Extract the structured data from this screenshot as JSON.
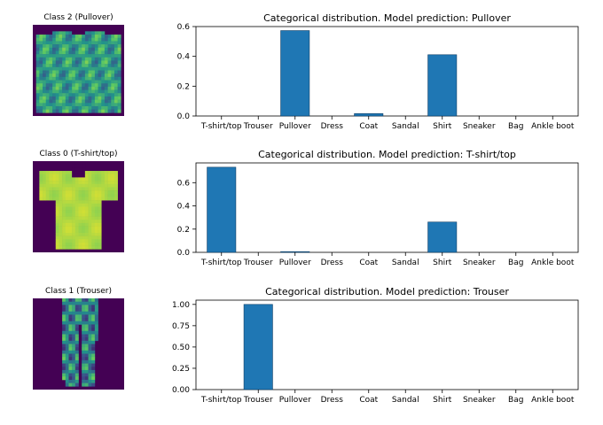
{
  "chart_data": [
    {
      "type": "bar",
      "title": "Categorical distribution. Model prediction: Pullover",
      "image_title": "Class 2 (Pullover)",
      "image_kind": "pullover",
      "categories": [
        "T-shirt/top",
        "Trouser",
        "Pullover",
        "Dress",
        "Coat",
        "Sandal",
        "Shirt",
        "Sneaker",
        "Bag",
        "Ankle boot"
      ],
      "values": [
        0.0,
        0.0,
        0.573,
        0.0,
        0.016,
        0.0,
        0.411,
        0.0,
        0.0,
        0.0
      ],
      "ylim": [
        0,
        0.6
      ],
      "yticks": [
        "0.0",
        "0.2",
        "0.4",
        "0.6"
      ],
      "ytick_values": [
        0.0,
        0.2,
        0.4,
        0.6
      ],
      "grid": false
    },
    {
      "type": "bar",
      "title": "Categorical distribution. Model prediction: T-shirt/top",
      "image_title": "Class 0 (T-shirt/top)",
      "image_kind": "tshirt",
      "categories": [
        "T-shirt/top",
        "Trouser",
        "Pullover",
        "Dress",
        "Coat",
        "Sandal",
        "Shirt",
        "Sneaker",
        "Bag",
        "Ankle boot"
      ],
      "values": [
        0.733,
        0.0,
        0.006,
        0.0,
        0.0,
        0.0,
        0.261,
        0.0,
        0.0,
        0.0
      ],
      "ylim": [
        0,
        0.77
      ],
      "yticks": [
        "0.0",
        "0.2",
        "0.4",
        "0.6"
      ],
      "ytick_values": [
        0.0,
        0.2,
        0.4,
        0.6
      ],
      "grid": false
    },
    {
      "type": "bar",
      "title": "Categorical distribution. Model prediction: Trouser",
      "image_title": "Class 1 (Trouser)",
      "image_kind": "trouser",
      "categories": [
        "T-shirt/top",
        "Trouser",
        "Pullover",
        "Dress",
        "Coat",
        "Sandal",
        "Shirt",
        "Sneaker",
        "Bag",
        "Ankle boot"
      ],
      "values": [
        0.0,
        1.0,
        0.0,
        0.0,
        0.0,
        0.0,
        0.0,
        0.0,
        0.0,
        0.0
      ],
      "ylim": [
        0,
        1.05
      ],
      "yticks": [
        "0.00",
        "0.25",
        "0.50",
        "0.75",
        "1.00"
      ],
      "ytick_values": [
        0.0,
        0.25,
        0.5,
        0.75,
        1.0
      ],
      "grid": false
    }
  ],
  "colors": {
    "bar": "#1f77b4",
    "bar_edge": "#0d3d66",
    "viridis_dark": "#440154",
    "viridis_mid": "#21918c",
    "viridis_green": "#5ec962",
    "viridis_yellow": "#fde725"
  }
}
